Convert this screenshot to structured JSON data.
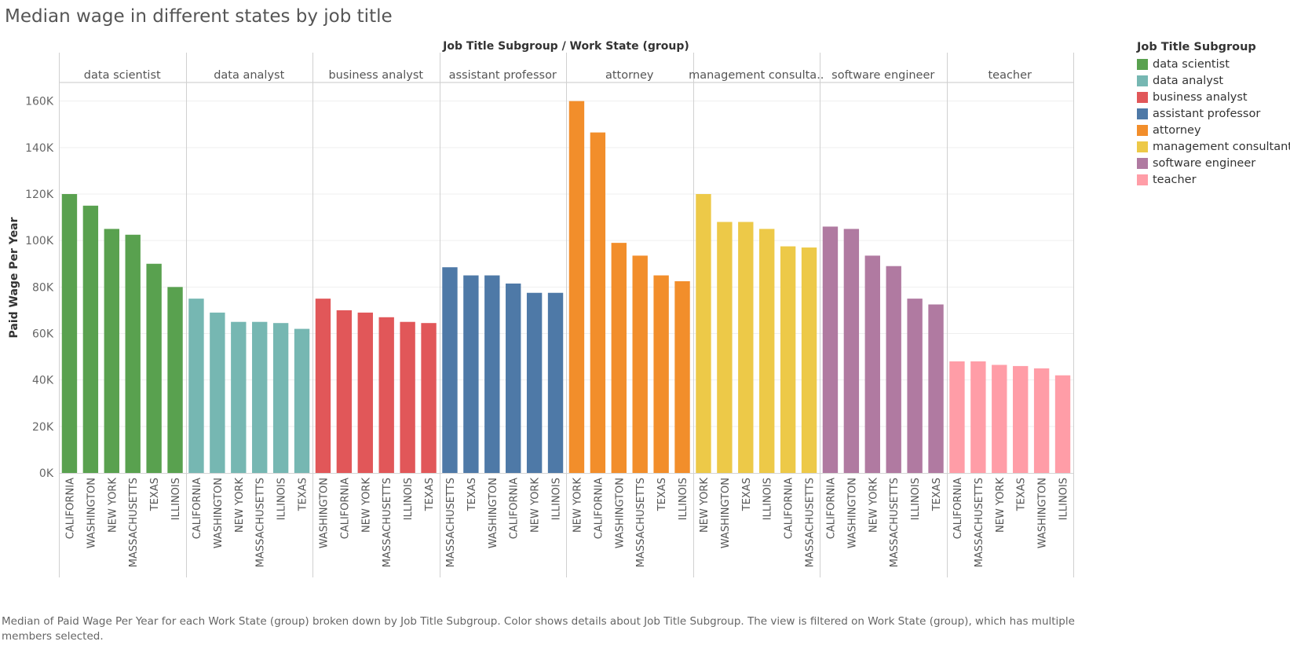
{
  "title": "Median wage in different states by job title",
  "caption": "Median of Paid Wage Per Year for each Work State (group) broken down by Job Title Subgroup.  Color shows details about Job Title Subgroup. The view is filtered on Work State (group), which has multiple members selected.",
  "legend": {
    "title": "Job Title Subgroup",
    "items": [
      {
        "label": "data scientist",
        "color": "#59a14f"
      },
      {
        "label": "data analyst",
        "color": "#76b7b2"
      },
      {
        "label": "business analyst",
        "color": "#e15759"
      },
      {
        "label": "assistant professor",
        "color": "#4e79a7"
      },
      {
        "label": "attorney",
        "color": "#f28e2b"
      },
      {
        "label": "management consultant",
        "color": "#edc948"
      },
      {
        "label": "software engineer",
        "color": "#b07aa1"
      },
      {
        "label": "teacher",
        "color": "#ff9da7"
      }
    ]
  },
  "chart_data": {
    "type": "bar",
    "title": "Median wage in different states by job title",
    "column_header_title": "Job Title Subgroup  /  Work State (group)",
    "ylabel": "Paid Wage Per Year",
    "ylim": [
      0,
      168000
    ],
    "yticks": [
      0,
      20000,
      40000,
      60000,
      80000,
      100000,
      120000,
      140000,
      160000
    ],
    "ytick_labels": [
      "0K",
      "20K",
      "40K",
      "60K",
      "80K",
      "100K",
      "120K",
      "140K",
      "160K"
    ],
    "groups": [
      {
        "name": "data scientist",
        "header": "data scientist",
        "color": "#59a14f",
        "categories": [
          "CALIFORNIA",
          "WASHINGTON",
          "NEW YORK",
          "MASSACHUSETTS",
          "TEXAS",
          "ILLINOIS"
        ],
        "values": [
          120000,
          115000,
          105000,
          102500,
          90000,
          80000
        ]
      },
      {
        "name": "data analyst",
        "header": "data analyst",
        "color": "#76b7b2",
        "categories": [
          "CALIFORNIA",
          "WASHINGTON",
          "NEW YORK",
          "MASSACHUSETTS",
          "ILLINOIS",
          "TEXAS"
        ],
        "values": [
          75000,
          69000,
          65000,
          65000,
          64500,
          62000
        ]
      },
      {
        "name": "business analyst",
        "header": "business analyst",
        "color": "#e15759",
        "categories": [
          "WASHINGTON",
          "CALIFORNIA",
          "NEW YORK",
          "MASSACHUSETTS",
          "ILLINOIS",
          "TEXAS"
        ],
        "values": [
          75000,
          70000,
          69000,
          67000,
          65000,
          64500
        ]
      },
      {
        "name": "assistant professor",
        "header": "assistant professor",
        "color": "#4e79a7",
        "categories": [
          "MASSACHUSETTS",
          "TEXAS",
          "WASHINGTON",
          "CALIFORNIA",
          "NEW YORK",
          "ILLINOIS"
        ],
        "values": [
          88500,
          85000,
          85000,
          81500,
          77500,
          77500
        ]
      },
      {
        "name": "attorney",
        "header": "attorney",
        "color": "#f28e2b",
        "categories": [
          "NEW YORK",
          "CALIFORNIA",
          "WASHINGTON",
          "MASSACHUSETTS",
          "TEXAS",
          "ILLINOIS"
        ],
        "values": [
          160000,
          146500,
          99000,
          93500,
          85000,
          82500
        ]
      },
      {
        "name": "management consultant",
        "header": "management consulta..",
        "color": "#edc948",
        "categories": [
          "NEW YORK",
          "WASHINGTON",
          "TEXAS",
          "ILLINOIS",
          "CALIFORNIA",
          "MASSACHUSETTS"
        ],
        "values": [
          120000,
          108000,
          108000,
          105000,
          97500,
          97000
        ]
      },
      {
        "name": "software engineer",
        "header": "software engineer",
        "color": "#b07aa1",
        "categories": [
          "CALIFORNIA",
          "WASHINGTON",
          "NEW YORK",
          "MASSACHUSETTS",
          "ILLINOIS",
          "TEXAS"
        ],
        "values": [
          106000,
          105000,
          93500,
          89000,
          75000,
          72500
        ]
      },
      {
        "name": "teacher",
        "header": "teacher",
        "color": "#ff9da7",
        "categories": [
          "CALIFORNIA",
          "MASSACHUSETTS",
          "NEW YORK",
          "TEXAS",
          "WASHINGTON",
          "ILLINOIS"
        ],
        "values": [
          48000,
          48000,
          46500,
          46000,
          45000,
          42000
        ]
      }
    ]
  }
}
